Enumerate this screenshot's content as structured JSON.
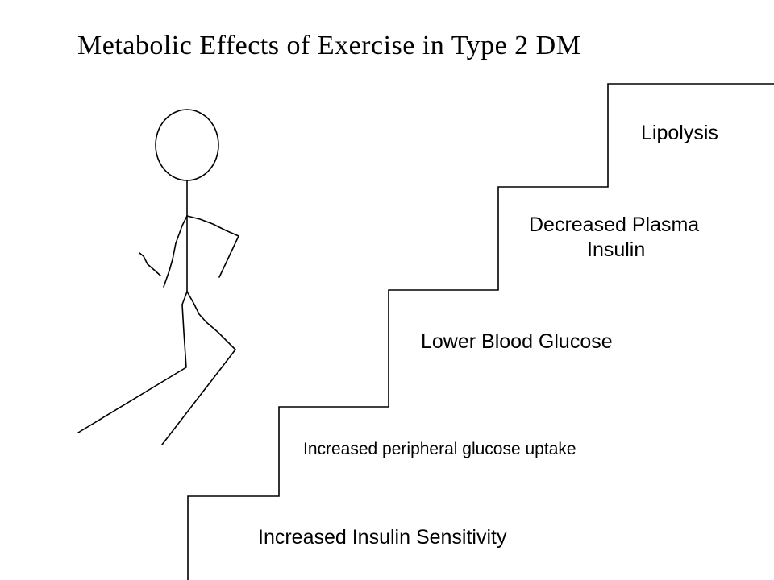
{
  "title": "Metabolic Effects of  Exercise in Type 2 DM",
  "steps": [
    {
      "label": "Increased Insulin Sensitivity"
    },
    {
      "label": "Increased peripheral glucose uptake"
    },
    {
      "label": "Lower Blood Glucose"
    },
    {
      "label_line1": "Decreased Plasma",
      "label_line2": "Insulin"
    },
    {
      "label": "Lipolysis"
    }
  ],
  "figure": {
    "icon": "stick-figure-icon"
  },
  "colors": {
    "background": "#ffffff",
    "line": "#000000"
  }
}
